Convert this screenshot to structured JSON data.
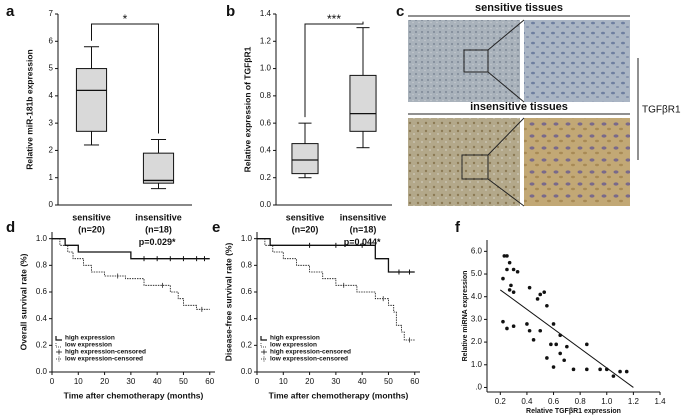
{
  "panel_labels": [
    "a",
    "b",
    "c",
    "d",
    "e",
    "f"
  ],
  "tissue_panel": {
    "top_label": "sensitive tissues",
    "bottom_label": "insensitive tissues",
    "marker": "TGFβR1"
  },
  "chart_data": [
    {
      "type": "box",
      "ylabel": "Relative miR-181b expression",
      "categories": [
        "sensitive",
        "insensitive"
      ],
      "n_labels": [
        "(n=20)",
        "(n=18)"
      ],
      "boxes": [
        {
          "min": 2.2,
          "q1": 2.7,
          "median": 4.2,
          "q3": 5.0,
          "max": 5.8
        },
        {
          "min": 0.6,
          "q1": 0.8,
          "median": 0.9,
          "q3": 1.9,
          "max": 2.4
        }
      ],
      "color": "#d9d9d9",
      "significance": "*",
      "ylim": [
        0,
        7
      ],
      "yticks": [
        0,
        1,
        2,
        3,
        4,
        5,
        6,
        7
      ]
    },
    {
      "type": "box",
      "ylabel": "Relative expression of TGFβR1",
      "categories": [
        "sensitive",
        "insensitive"
      ],
      "n_labels": [
        "(n=20)",
        "(n=18)"
      ],
      "boxes": [
        {
          "min": 0.2,
          "q1": 0.23,
          "median": 0.33,
          "q3": 0.45,
          "max": 0.6
        },
        {
          "min": 0.42,
          "q1": 0.54,
          "median": 0.67,
          "q3": 0.95,
          "max": 1.3
        }
      ],
      "color": "#d9d9d9",
      "significance": "***",
      "ylim": [
        0,
        1.4
      ],
      "yticks": [
        {
          "value": 0,
          "label": "0.0"
        },
        0.2,
        0.4,
        0.6,
        0.8,
        {
          "value": 1,
          "label": "1.0"
        },
        1.2,
        1.4
      ]
    },
    {
      "type": "survival",
      "xlabel": "Time after chemotherapy (months)",
      "ylabel": "Overall survival rate (%)",
      "annotation": "p=0.029*",
      "series": [
        {
          "name": "high expression",
          "style": "solid",
          "x": [
            0,
            5,
            10,
            30,
            60
          ],
          "values": [
            1,
            0.95,
            0.9,
            0.85,
            0.85
          ]
        },
        {
          "name": "low expression",
          "style": "dotted",
          "x": [
            0,
            3,
            6,
            8,
            12,
            15,
            20,
            28,
            35,
            45,
            48,
            50,
            55,
            60
          ],
          "values": [
            1,
            0.95,
            0.9,
            0.85,
            0.8,
            0.75,
            0.72,
            0.7,
            0.65,
            0.6,
            0.55,
            0.5,
            0.47,
            0.47
          ]
        },
        {
          "name": "high expression-censored",
          "style": "censored-solid",
          "x": [
            35,
            40,
            45,
            50,
            55,
            58
          ],
          "values": [
            0.85,
            0.85,
            0.85,
            0.85,
            0.85,
            0.85
          ]
        },
        {
          "name": "low expression-censored",
          "style": "censored-dotted",
          "x": [
            25,
            42,
            57
          ],
          "values": [
            0.72,
            0.65,
            0.47
          ]
        }
      ],
      "xlim": [
        0,
        62
      ],
      "xticks": [
        0,
        10,
        20,
        30,
        40,
        50,
        60
      ],
      "ylim": [
        0,
        1.05
      ],
      "yticks": [
        {
          "value": 0,
          "label": "0.0"
        },
        0.2,
        0.4,
        0.6,
        0.8,
        {
          "value": 1,
          "label": "1.0"
        }
      ]
    },
    {
      "type": "survival",
      "xlabel": "Time after chemotherapy (months)",
      "ylabel": "Disease-free survival rate (%)",
      "annotation": "p=0.044*",
      "series": [
        {
          "name": "high expression",
          "style": "solid",
          "x": [
            0,
            5,
            45,
            50,
            60
          ],
          "values": [
            1,
            0.95,
            0.85,
            0.75,
            0.75
          ]
        },
        {
          "name": "low expression",
          "style": "dotted",
          "x": [
            0,
            3,
            6,
            10,
            15,
            20,
            25,
            30,
            38,
            45,
            50,
            52,
            53,
            55,
            56,
            60
          ],
          "values": [
            1,
            0.95,
            0.9,
            0.85,
            0.8,
            0.75,
            0.7,
            0.65,
            0.6,
            0.55,
            0.5,
            0.45,
            0.35,
            0.3,
            0.24,
            0.24
          ]
        },
        {
          "name": "high expression-censored",
          "style": "censored-solid",
          "x": [
            20,
            30,
            40,
            54,
            58
          ],
          "values": [
            0.95,
            0.95,
            0.95,
            0.75,
            0.75
          ]
        },
        {
          "name": "low expression-censored",
          "style": "censored-dotted",
          "x": [
            33,
            48,
            58
          ],
          "values": [
            0.65,
            0.55,
            0.24
          ]
        }
      ],
      "xlim": [
        0,
        62
      ],
      "xticks": [
        0,
        10,
        20,
        30,
        40,
        50,
        60
      ],
      "ylim": [
        0,
        1.05
      ],
      "yticks": [
        {
          "value": 0,
          "label": "0.0"
        },
        0.2,
        0.4,
        0.6,
        0.8,
        {
          "value": 1,
          "label": "1.0"
        }
      ]
    },
    {
      "type": "scatter",
      "xlabel": "Relative TGFβR1 expression",
      "ylabel": "Relative miRNA expression",
      "color": "#111111",
      "x": [
        0.23,
        0.25,
        0.27,
        0.25,
        0.3,
        0.33,
        0.22,
        0.28,
        0.27,
        0.3,
        0.42,
        0.5,
        0.53,
        0.48,
        0.55,
        0.22,
        0.25,
        0.3,
        0.4,
        0.42,
        0.5,
        0.45,
        0.6,
        0.65,
        0.58,
        0.62,
        0.7,
        0.65,
        0.68,
        0.55,
        0.6,
        0.75,
        0.85,
        0.95,
        1.0,
        1.1,
        1.15,
        1.05,
        0.85
      ],
      "values": [
        5.8,
        5.8,
        5.5,
        5.2,
        5.2,
        5.1,
        4.8,
        4.5,
        4.3,
        4.2,
        4.4,
        4.1,
        4.2,
        3.9,
        3.6,
        2.9,
        2.6,
        2.7,
        2.8,
        2.5,
        2.5,
        2.1,
        2.8,
        2.3,
        1.9,
        1.9,
        1.8,
        1.5,
        1.2,
        1.3,
        0.9,
        0.8,
        0.8,
        0.8,
        0.8,
        0.7,
        0.7,
        0.5,
        1.9
      ],
      "fit_line": {
        "x": [
          0.2,
          1.2
        ],
        "values": [
          4.3,
          0
        ]
      },
      "xlim": [
        0.1,
        1.4
      ],
      "xticks": [
        0.2,
        0.4,
        0.6,
        0.8,
        {
          "value": 1,
          "label": "1.0"
        },
        1.2,
        1.4
      ],
      "ylim": [
        -0.2,
        6.5
      ],
      "yticks": [
        {
          "value": 0,
          "label": ".0"
        },
        {
          "value": 1,
          "label": "1.0"
        },
        {
          "value": 2,
          "label": "2.0"
        },
        {
          "value": 3,
          "label": "3.0"
        },
        {
          "value": 4,
          "label": "4.0"
        },
        {
          "value": 5,
          "label": "5.0"
        },
        {
          "value": 6,
          "label": "6.0"
        }
      ]
    }
  ]
}
